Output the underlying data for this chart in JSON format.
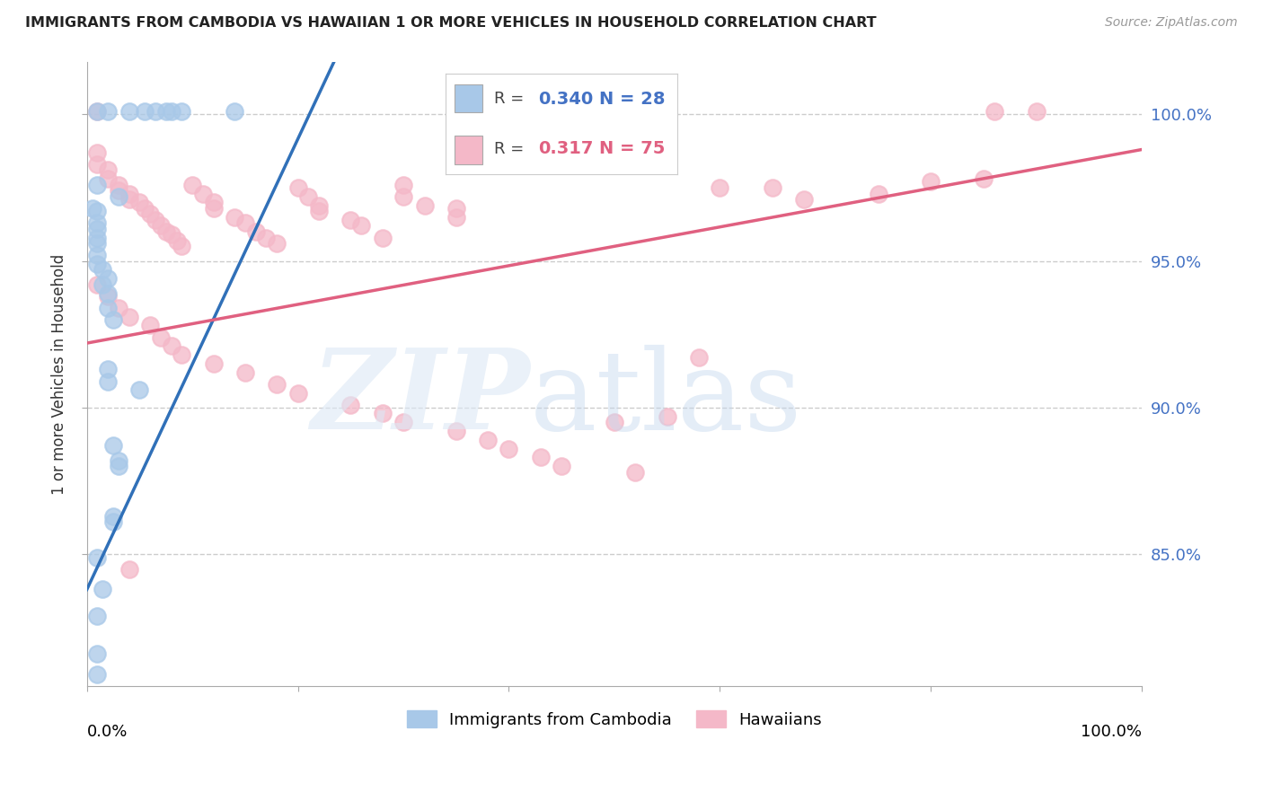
{
  "title": "IMMIGRANTS FROM CAMBODIA VS HAWAIIAN 1 OR MORE VEHICLES IN HOUSEHOLD CORRELATION CHART",
  "source": "Source: ZipAtlas.com",
  "ylabel": "1 or more Vehicles in Household",
  "blue_color": "#a8c8e8",
  "pink_color": "#f4b8c8",
  "blue_line_color": "#3070b8",
  "pink_line_color": "#e06080",
  "legend_blue_text_color": "#4472c4",
  "legend_pink_text_color": "#e06080",
  "right_axis_color": "#4472c4",
  "xlim": [
    0.0,
    1.0
  ],
  "ylim": [
    0.805,
    1.018
  ],
  "yticks": [
    0.85,
    0.9,
    0.95,
    1.0
  ],
  "ytick_labels": [
    "85.0%",
    "90.0%",
    "95.0%",
    "100.0%"
  ],
  "blue_line": [
    [
      0.0,
      0.838
    ],
    [
      0.25,
      1.03
    ]
  ],
  "pink_line": [
    [
      0.0,
      0.922
    ],
    [
      1.0,
      0.988
    ]
  ],
  "blue_scatter": [
    [
      0.01,
      1.001
    ],
    [
      0.02,
      1.001
    ],
    [
      0.04,
      1.001
    ],
    [
      0.055,
      1.001
    ],
    [
      0.065,
      1.001
    ],
    [
      0.075,
      1.001
    ],
    [
      0.08,
      1.001
    ],
    [
      0.09,
      1.001
    ],
    [
      0.14,
      1.001
    ],
    [
      0.01,
      0.976
    ],
    [
      0.03,
      0.972
    ],
    [
      0.005,
      0.968
    ],
    [
      0.01,
      0.967
    ],
    [
      0.01,
      0.963
    ],
    [
      0.01,
      0.961
    ],
    [
      0.01,
      0.958
    ],
    [
      0.01,
      0.956
    ],
    [
      0.01,
      0.952
    ],
    [
      0.01,
      0.949
    ],
    [
      0.015,
      0.947
    ],
    [
      0.02,
      0.944
    ],
    [
      0.015,
      0.942
    ],
    [
      0.02,
      0.939
    ],
    [
      0.02,
      0.934
    ],
    [
      0.025,
      0.93
    ],
    [
      0.02,
      0.913
    ],
    [
      0.02,
      0.909
    ],
    [
      0.05,
      0.906
    ],
    [
      0.025,
      0.887
    ],
    [
      0.03,
      0.882
    ],
    [
      0.03,
      0.88
    ],
    [
      0.025,
      0.863
    ],
    [
      0.025,
      0.861
    ],
    [
      0.01,
      0.849
    ],
    [
      0.015,
      0.838
    ],
    [
      0.01,
      0.829
    ],
    [
      0.01,
      0.816
    ],
    [
      0.01,
      0.809
    ]
  ],
  "pink_scatter": [
    [
      0.01,
      1.001
    ],
    [
      0.86,
      1.001
    ],
    [
      0.9,
      1.001
    ],
    [
      0.01,
      0.987
    ],
    [
      0.01,
      0.983
    ],
    [
      0.02,
      0.981
    ],
    [
      0.02,
      0.978
    ],
    [
      0.03,
      0.976
    ],
    [
      0.03,
      0.974
    ],
    [
      0.04,
      0.973
    ],
    [
      0.04,
      0.971
    ],
    [
      0.05,
      0.97
    ],
    [
      0.055,
      0.968
    ],
    [
      0.06,
      0.966
    ],
    [
      0.065,
      0.964
    ],
    [
      0.07,
      0.962
    ],
    [
      0.075,
      0.96
    ],
    [
      0.08,
      0.959
    ],
    [
      0.085,
      0.957
    ],
    [
      0.09,
      0.955
    ],
    [
      0.1,
      0.976
    ],
    [
      0.11,
      0.973
    ],
    [
      0.12,
      0.97
    ],
    [
      0.12,
      0.968
    ],
    [
      0.14,
      0.965
    ],
    [
      0.15,
      0.963
    ],
    [
      0.16,
      0.96
    ],
    [
      0.17,
      0.958
    ],
    [
      0.18,
      0.956
    ],
    [
      0.2,
      0.975
    ],
    [
      0.21,
      0.972
    ],
    [
      0.22,
      0.969
    ],
    [
      0.22,
      0.967
    ],
    [
      0.25,
      0.964
    ],
    [
      0.26,
      0.962
    ],
    [
      0.28,
      0.958
    ],
    [
      0.3,
      0.976
    ],
    [
      0.3,
      0.972
    ],
    [
      0.32,
      0.969
    ],
    [
      0.35,
      0.968
    ],
    [
      0.35,
      0.965
    ],
    [
      0.01,
      0.942
    ],
    [
      0.02,
      0.938
    ],
    [
      0.03,
      0.934
    ],
    [
      0.04,
      0.931
    ],
    [
      0.06,
      0.928
    ],
    [
      0.07,
      0.924
    ],
    [
      0.08,
      0.921
    ],
    [
      0.09,
      0.918
    ],
    [
      0.12,
      0.915
    ],
    [
      0.15,
      0.912
    ],
    [
      0.18,
      0.908
    ],
    [
      0.2,
      0.905
    ],
    [
      0.25,
      0.901
    ],
    [
      0.28,
      0.898
    ],
    [
      0.3,
      0.895
    ],
    [
      0.35,
      0.892
    ],
    [
      0.38,
      0.889
    ],
    [
      0.4,
      0.886
    ],
    [
      0.43,
      0.883
    ],
    [
      0.45,
      0.88
    ],
    [
      0.5,
      0.895
    ],
    [
      0.55,
      0.897
    ],
    [
      0.52,
      0.878
    ],
    [
      0.58,
      0.917
    ],
    [
      0.6,
      0.975
    ],
    [
      0.65,
      0.975
    ],
    [
      0.68,
      0.971
    ],
    [
      0.75,
      0.973
    ],
    [
      0.8,
      0.977
    ],
    [
      0.85,
      0.978
    ],
    [
      0.04,
      0.845
    ]
  ]
}
